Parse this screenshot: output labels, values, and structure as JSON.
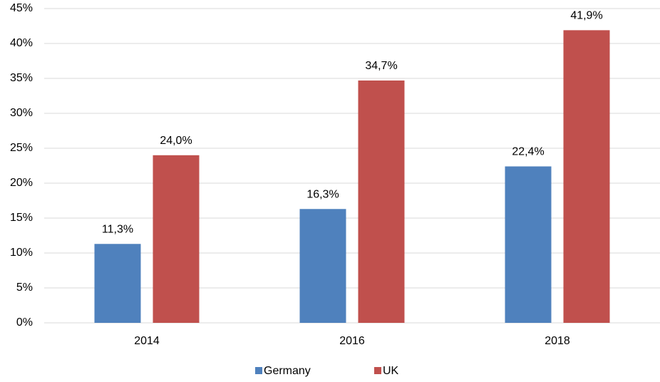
{
  "chart_data": {
    "type": "bar",
    "categories": [
      "2014",
      "2016",
      "2018"
    ],
    "series": [
      {
        "name": "Germany",
        "color": "#4f81bd",
        "values": [
          11.3,
          16.3,
          22.4
        ],
        "value_labels": [
          "11,3%",
          "16,3%",
          "22,4%"
        ]
      },
      {
        "name": "UK",
        "color": "#c0504d",
        "values": [
          24.0,
          34.7,
          41.9
        ],
        "value_labels": [
          "24,0%",
          "34,7%",
          "41,9%"
        ]
      }
    ],
    "ylim": [
      0,
      45
    ],
    "yticks": [
      {
        "value": 0,
        "label": "0%"
      },
      {
        "value": 5,
        "label": "5%"
      },
      {
        "value": 10,
        "label": "10%"
      },
      {
        "value": 15,
        "label": "15%"
      },
      {
        "value": 20,
        "label": "20%"
      },
      {
        "value": 25,
        "label": "25%"
      },
      {
        "value": 30,
        "label": "30%"
      },
      {
        "value": 35,
        "label": "35%"
      },
      {
        "value": 40,
        "label": "40%"
      },
      {
        "value": 45,
        "label": "45%"
      }
    ],
    "grid": true,
    "legend": "bottom"
  }
}
